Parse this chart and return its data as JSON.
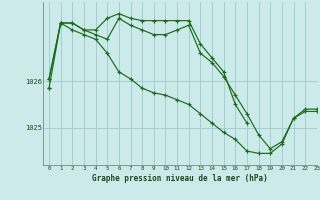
{
  "bg_color": "#cceaea",
  "line_color": "#1a6b1a",
  "grid_color": "#99cccc",
  "xlabel": "Graphe pression niveau de la mer (hPa)",
  "ylim": [
    1024.2,
    1027.7
  ],
  "xlim": [
    -0.5,
    23
  ],
  "yticks": [
    1025,
    1026
  ],
  "xticks": [
    0,
    1,
    2,
    3,
    4,
    5,
    6,
    7,
    8,
    9,
    10,
    11,
    12,
    13,
    14,
    15,
    16,
    17,
    18,
    19,
    20,
    21,
    22,
    23
  ],
  "series": [
    [
      1025.85,
      1027.25,
      1027.25,
      1027.1,
      1027.1,
      1027.35,
      1027.45,
      1027.35,
      1027.3,
      1027.3,
      1027.3,
      1027.3,
      1027.3,
      1026.8,
      1026.5,
      1026.2,
      1025.5,
      1025.1,
      null,
      null,
      null,
      null,
      null,
      null
    ],
    [
      1026.05,
      1027.25,
      1027.25,
      1027.1,
      1027.0,
      1026.9,
      1027.35,
      1027.2,
      1027.1,
      1027.0,
      1027.0,
      1027.1,
      1027.2,
      1026.6,
      1026.4,
      1026.1,
      1025.7,
      1025.3,
      1024.85,
      1024.55,
      1024.7,
      1025.2,
      1025.4,
      1025.4
    ],
    [
      1026.05,
      1027.25,
      1027.1,
      1027.0,
      1026.9,
      1026.6,
      1026.2,
      1026.05,
      1025.85,
      1025.75,
      1025.7,
      1025.6,
      1025.5,
      1025.3,
      1025.1,
      1024.9,
      1024.75,
      1024.5,
      1024.45,
      1024.45,
      1024.65,
      1025.2,
      1025.35,
      1025.35
    ],
    [
      1025.85,
      null,
      null,
      null,
      null,
      null,
      null,
      null,
      null,
      null,
      null,
      null,
      null,
      null,
      null,
      null,
      null,
      null,
      null,
      null,
      null,
      null,
      null,
      null
    ]
  ]
}
